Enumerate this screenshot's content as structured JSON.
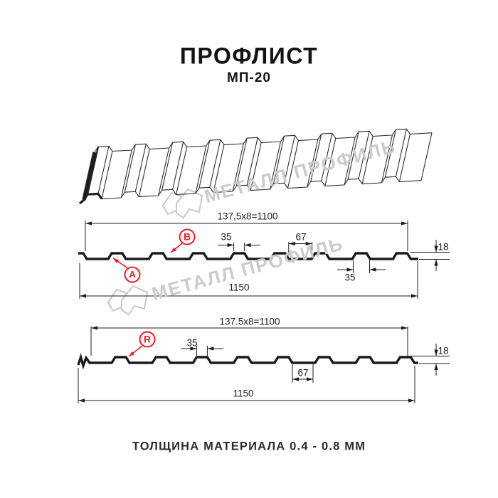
{
  "header": {
    "title": "ПРОФЛИСТ",
    "subtitle": "МП-20"
  },
  "footer": {
    "text": "ТОЛЩИНА МАТЕРИАЛА 0.4 - 0.8 ММ"
  },
  "watermark": {
    "text": "МЕТАЛЛ ПРОФИЛЬ"
  },
  "colors": {
    "accent": "#ed1c24",
    "line": "#1c1c1c",
    "watermark": "#c8c8c8",
    "sheet_line": "#2e2e2e",
    "dark_edge": "#1f1f1f"
  },
  "sections": [
    {
      "name": "upper-profile-section",
      "coverage_label": "137,5x8=1100",
      "overall_label": "1150",
      "dims": {
        "rib_top": "35",
        "valley": "67",
        "height": "18",
        "rib_base": "35"
      },
      "markers": [
        {
          "label": "A"
        },
        {
          "label": "B"
        }
      ]
    },
    {
      "name": "lower-profile-section",
      "coverage_label": "137.5x8=1100",
      "overall_label": "1150",
      "dims": {
        "rib_top": "35",
        "valley": "67",
        "height": "18"
      },
      "markers": [
        {
          "label": "R"
        }
      ]
    }
  ]
}
